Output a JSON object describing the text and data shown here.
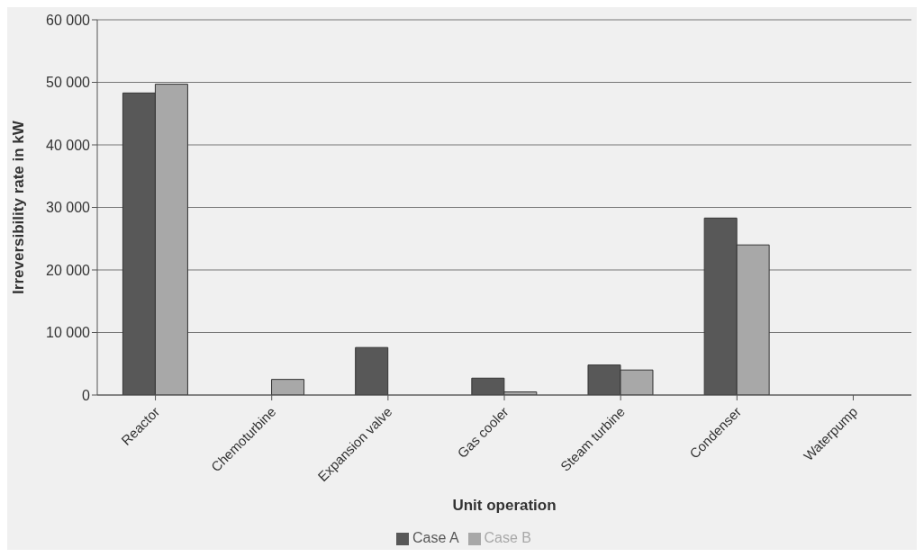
{
  "chart_data": {
    "type": "bar",
    "xlabel": "Unit operation",
    "ylabel": "Irreversibility rate in kW",
    "categories": [
      "Reactor",
      "Chemoturbine",
      "Expansion valve",
      "Gas cooler",
      "Steam turbine",
      "Condenser",
      "Waterpump"
    ],
    "series": [
      {
        "name": "Case A",
        "color": "#585858",
        "values": [
          48300,
          0,
          7600,
          2700,
          4800,
          28300,
          0
        ]
      },
      {
        "name": "Case B",
        "color": "#a8a8a8",
        "values": [
          49700,
          2500,
          0,
          500,
          4000,
          24000,
          0
        ]
      }
    ],
    "ylim": [
      0,
      60000
    ],
    "yticks": [
      {
        "value": 0,
        "label": "0"
      },
      {
        "value": 10000,
        "label": "10 000"
      },
      {
        "value": 20000,
        "label": "20 000"
      },
      {
        "value": 30000,
        "label": "30 000"
      },
      {
        "value": 40000,
        "label": "40 000"
      },
      {
        "value": 50000,
        "label": "50 000"
      },
      {
        "value": 60000,
        "label": "60 000"
      }
    ],
    "grid": "y",
    "legend": "bottom"
  }
}
